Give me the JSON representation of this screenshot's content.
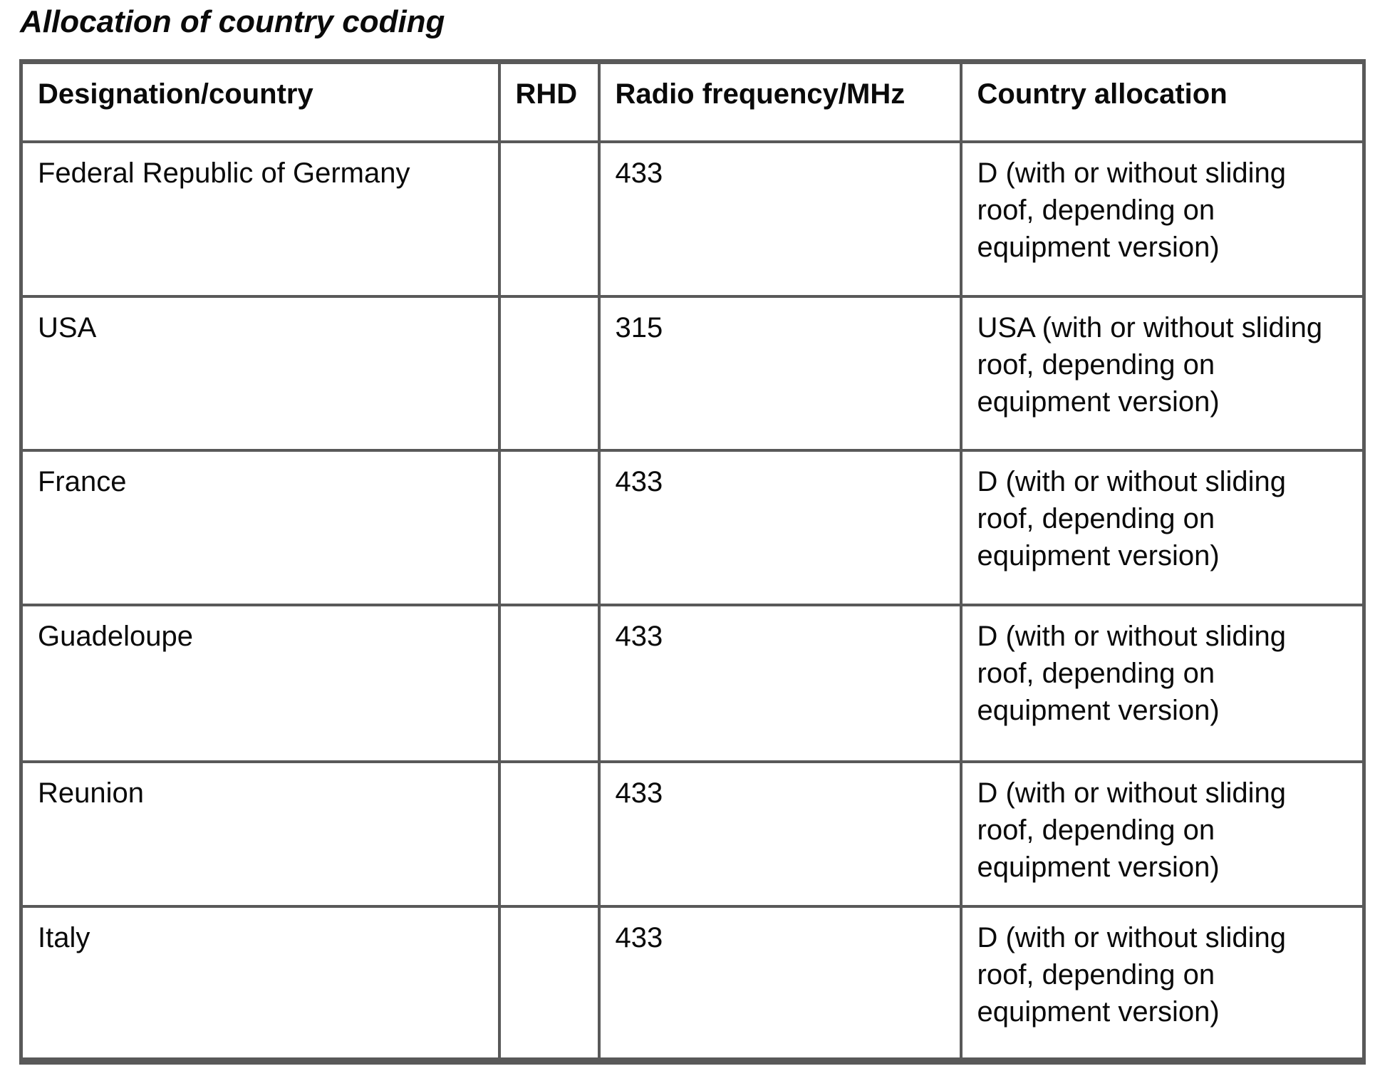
{
  "page": {
    "title": "Allocation of country coding"
  },
  "colors": {
    "border": "#595959",
    "text": "#0a0a0a",
    "background": "#ffffff"
  },
  "table": {
    "headers": {
      "designation": "Designation/country",
      "rhd": "RHD",
      "frequency": "Radio frequency/MHz",
      "allocation": "Country allocation"
    },
    "rows": [
      {
        "country": "Federal Republic of Germany",
        "rhd": "",
        "frequency": "433",
        "allocation": "D (with or without sliding\nroof, depending on\nequipment version)"
      },
      {
        "country": "USA",
        "rhd": "",
        "frequency": "315",
        "allocation": "USA (with or without sliding\nroof, depending on\nequipment version)"
      },
      {
        "country": "France",
        "rhd": "",
        "frequency": "433",
        "allocation": "D (with or without sliding\nroof, depending on\nequipment version)"
      },
      {
        "country": "Guadeloupe",
        "rhd": "",
        "frequency": "433",
        "allocation": "D (with or without sliding\nroof, depending on\nequipment version)"
      },
      {
        "country": "Reunion",
        "rhd": "",
        "frequency": "433",
        "allocation": "D (with or without sliding\nroof, depending on\nequipment version)"
      },
      {
        "country": "Italy",
        "rhd": "",
        "frequency": "433",
        "allocation": "D (with or without sliding\nroof, depending on\nequipment version)"
      }
    ]
  }
}
